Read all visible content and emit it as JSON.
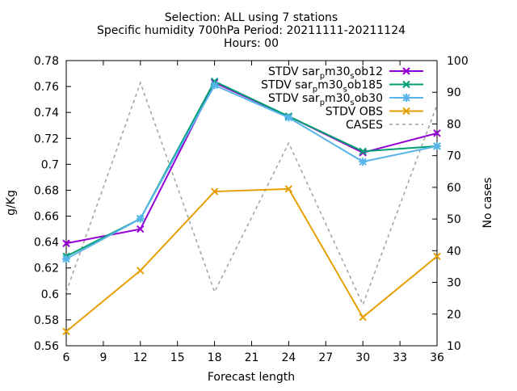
{
  "chart_data": {
    "type": "line",
    "title_lines": [
      "Selection: ALL using      7 stations",
      "Specific humidity 700hPa   Period: 20211111-20211124",
      "Hours: 00"
    ],
    "xlabel": "Forecast length",
    "ylabel": "g/Kg",
    "y2label": "No cases",
    "xlim": [
      6,
      36
    ],
    "ylim": [
      0.56,
      0.78
    ],
    "y2lim": [
      10,
      100
    ],
    "xticks": [
      "6",
      "9",
      "12",
      "15",
      "18",
      "21",
      "24",
      "27",
      "30",
      "33",
      "36"
    ],
    "yticks": [
      "0.56",
      "0.58",
      "0.6",
      "0.62",
      "0.64",
      "0.66",
      "0.68",
      "0.7",
      "0.72",
      "0.74",
      "0.76",
      "0.78"
    ],
    "y2ticks": [
      "10",
      "20",
      "30",
      "40",
      "50",
      "60",
      "70",
      "80",
      "90",
      "100"
    ],
    "legend_position": "top-right",
    "grid": false,
    "x": [
      6,
      12,
      18,
      24,
      30,
      36
    ],
    "series": [
      {
        "name": "STDV sar_m30_sob12",
        "legend_main": "STDV sar",
        "legend_sub1": "p",
        "legend_mid": "m30",
        "legend_sub2": "s",
        "legend_end": "ob12",
        "axis": "y",
        "color": "#9400d3",
        "marker": "x",
        "values": [
          0.639,
          0.65,
          0.763,
          0.737,
          0.709,
          0.724
        ]
      },
      {
        "name": "STDV sar_m30_sob185",
        "legend_main": "STDV sar",
        "legend_sub1": "p",
        "legend_mid": "m30",
        "legend_sub2": "s",
        "legend_end": "ob185",
        "axis": "y",
        "color": "#009e73",
        "marker": "x",
        "values": [
          0.629,
          0.658,
          0.764,
          0.737,
          0.71,
          0.714
        ]
      },
      {
        "name": "STDV sar_m30_sob30",
        "legend_main": "STDV sar",
        "legend_sub1": "p",
        "legend_mid": "m30",
        "legend_sub2": "s",
        "legend_end": "ob30",
        "axis": "y",
        "color": "#56b4e9",
        "marker": "star",
        "values": [
          0.627,
          0.658,
          0.761,
          0.736,
          0.702,
          0.714
        ]
      },
      {
        "name": "STDV OBS",
        "legend_main": "STDV OBS",
        "axis": "y",
        "color": "#e69f00",
        "marker": "x",
        "values": [
          0.571,
          0.618,
          0.679,
          0.681,
          0.582,
          0.629
        ]
      },
      {
        "name": "CASES",
        "legend_main": "CASES",
        "axis": "y2",
        "color": "#a0a0a0",
        "marker": "none",
        "dashed": true,
        "values": [
          27,
          93,
          27,
          74,
          23,
          86
        ]
      }
    ]
  }
}
